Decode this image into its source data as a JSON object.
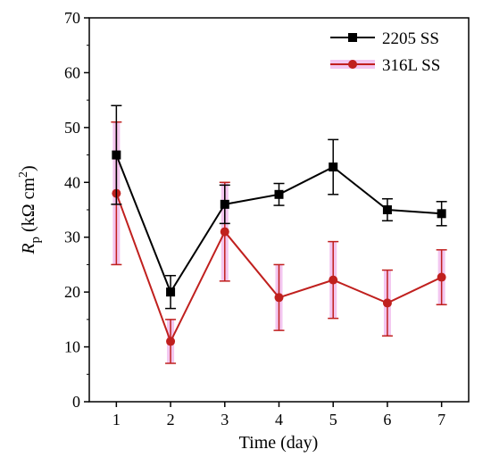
{
  "chart_data": {
    "type": "line",
    "x": [
      1,
      2,
      3,
      4,
      5,
      6,
      7
    ],
    "xlabel": "Time (day)",
    "ylabel": {
      "symbol": "R",
      "subscript": "p",
      "unit_prefix": " (kΩ cm",
      "unit_sup": "2",
      "unit_suffix": ")"
    },
    "xlim": [
      0.5,
      7.5
    ],
    "ylim": [
      0,
      70
    ],
    "xticks": [
      1,
      2,
      3,
      4,
      5,
      6,
      7
    ],
    "yticks": [
      0,
      10,
      20,
      30,
      40,
      50,
      60,
      70
    ],
    "grid": false,
    "legend_position": "top-right",
    "series": [
      {
        "name": "2205 SS",
        "color": "#000000",
        "marker": "square",
        "values": [
          45,
          20,
          36,
          37.8,
          42.8,
          35,
          34.3
        ],
        "error": [
          9,
          3,
          3.5,
          2,
          5,
          2,
          2.2
        ]
      },
      {
        "name": "316L SS",
        "color": "#c0201e",
        "band_color": "#f3c6f0",
        "marker": "circle",
        "values": [
          38,
          11,
          31,
          19,
          22.2,
          18,
          22.7
        ],
        "error": [
          13,
          4,
          9,
          6,
          7,
          6,
          5
        ]
      }
    ]
  }
}
